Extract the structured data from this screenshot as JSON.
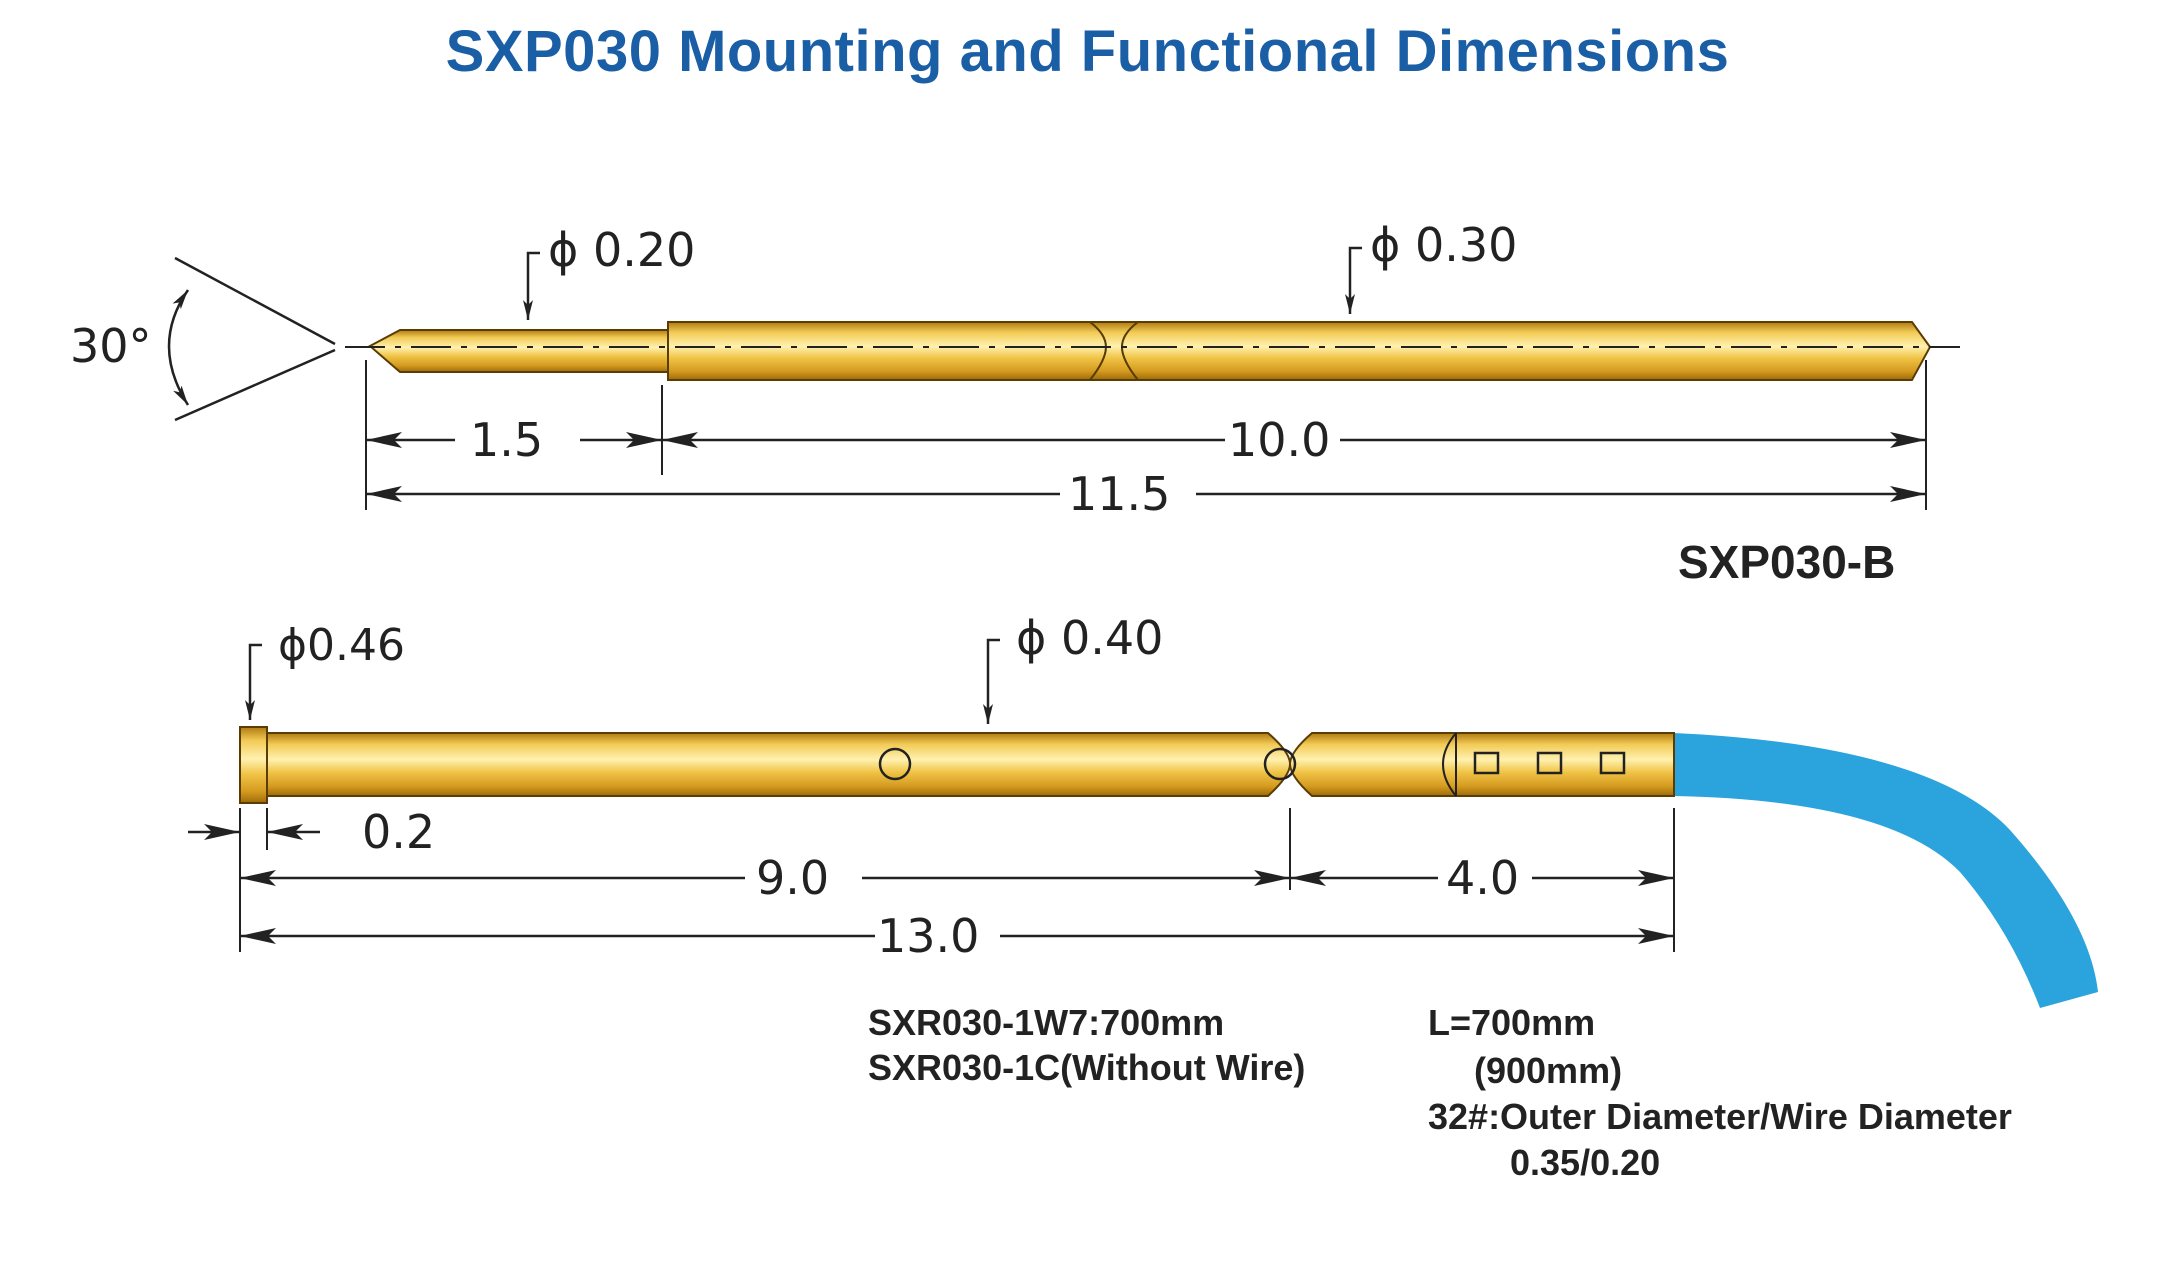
{
  "title": "SXP030 Mounting and Functional Dimensions",
  "colors": {
    "title": "#1a5ea6",
    "brass_light": "#f5d46a",
    "brass_mid": "#e2ad2a",
    "brass_dark": "#a8740e",
    "wire": "#2ba3dc",
    "line": "#222222"
  },
  "probe_top": {
    "model": "SXP030-B",
    "angle_label": "30°",
    "tip_diameter": "0.20",
    "body_diameter": "0.30",
    "dim_tip": "1.5",
    "dim_body": "10.0",
    "dim_total": "11.5"
  },
  "receptacle": {
    "head_diameter": "0.46",
    "body_diameter": "0.40",
    "dim_head": "0.2",
    "dim_front": "9.0",
    "dim_rear": "4.0",
    "dim_total": "13.0"
  },
  "diameter_symbol": "ϕ",
  "notes_left": [
    "SXR030-1W7:700mm",
    "SXR030-1C(Without Wire)"
  ],
  "notes_right": [
    "L=700mm",
    "(900mm)",
    "32#:Outer Diameter/Wire Diameter",
    "0.35/0.20"
  ]
}
